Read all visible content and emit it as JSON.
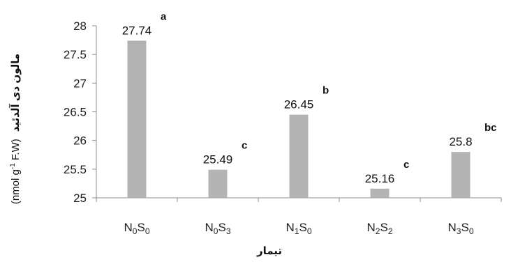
{
  "chart_data": {
    "type": "bar",
    "categories": [
      {
        "main": "N",
        "sub1": "0",
        "mid": "S",
        "sub2": "0"
      },
      {
        "main": "N",
        "sub1": "0",
        "mid": "S",
        "sub2": "3"
      },
      {
        "main": "N",
        "sub1": "1",
        "mid": "S",
        "sub2": "0"
      },
      {
        "main": "N",
        "sub1": "2",
        "mid": "S",
        "sub2": "2"
      },
      {
        "main": "N",
        "sub1": "3",
        "mid": "S",
        "sub2": "0"
      }
    ],
    "values": [
      27.74,
      25.49,
      26.45,
      25.16,
      25.8
    ],
    "value_labels": [
      "27.74",
      "25.49",
      "26.45",
      "25.16",
      "25.8"
    ],
    "significance_letters": [
      "a",
      "c",
      "b",
      "c",
      "bc"
    ],
    "ylim": [
      25,
      28
    ],
    "yticks": [
      25,
      25.5,
      26,
      26.5,
      27,
      27.5,
      28
    ],
    "ytick_labels": [
      "25",
      "25.5",
      "26",
      "26.5",
      "27",
      "27.5",
      "28"
    ],
    "xlabel": "تیمار",
    "ylabel": {
      "text": "مالون دی آلدئید",
      "unit_prefix": "(nmol g",
      "unit_superscript": "-1",
      "unit_suffix": " F.W)"
    },
    "bar_color": "#b3b3b3",
    "axis_color": "#8c8c8c",
    "grid": false,
    "legend": "none"
  }
}
